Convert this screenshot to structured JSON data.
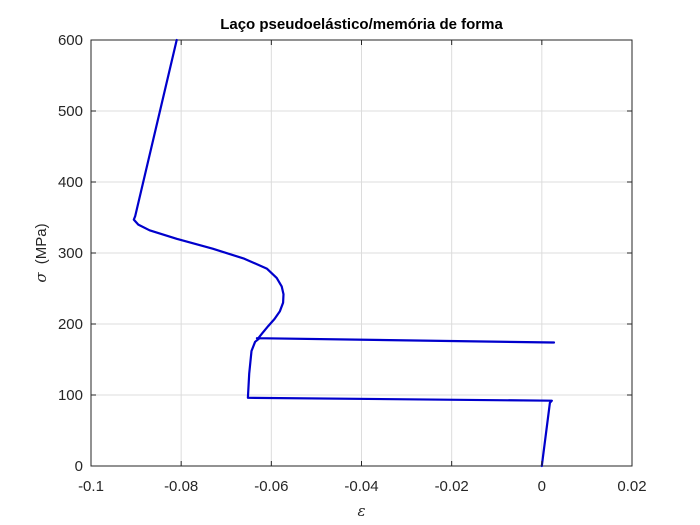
{
  "chart_data": {
    "type": "line",
    "title": "Laço pseudoelástico/memória de forma",
    "xlabel": "ε",
    "ylabel_symbol": "σ",
    "ylabel_unit": "(MPa)",
    "xlim": [
      -0.1,
      0.02
    ],
    "ylim": [
      0,
      600
    ],
    "grid": true,
    "x_ticks": [
      -0.1,
      -0.08,
      -0.06,
      -0.04,
      -0.02,
      0,
      0.02
    ],
    "x_tick_labels": [
      "-0.1",
      "-0.08",
      "-0.06",
      "-0.04",
      "-0.02",
      "0",
      "0.02"
    ],
    "y_ticks": [
      0,
      100,
      200,
      300,
      400,
      500,
      600
    ],
    "y_tick_labels": [
      "0",
      "100",
      "200",
      "300",
      "400",
      "500",
      "600"
    ],
    "series": [
      {
        "color": "#0000cc",
        "x": [
          0.0,
          0.0018,
          0.0022,
          -0.0652,
          -0.0649,
          -0.0644,
          -0.0636,
          -0.0626,
          -0.0632,
          0.0027,
          0.0022,
          -0.0629,
          -0.062,
          -0.0607,
          -0.0593,
          -0.0581,
          -0.0574,
          -0.0573,
          -0.0577,
          -0.0588,
          -0.061,
          -0.066,
          -0.073,
          -0.081,
          -0.087,
          -0.0895,
          -0.0905,
          -0.0902,
          -0.081
        ],
        "y": [
          0,
          89,
          92,
          96,
          130,
          162,
          175,
          180,
          180,
          174,
          174,
          180,
          187,
          197,
          207,
          218,
          230,
          242,
          253,
          265,
          278,
          292,
          306,
          320,
          332,
          340,
          347,
          352,
          600
        ]
      }
    ]
  }
}
